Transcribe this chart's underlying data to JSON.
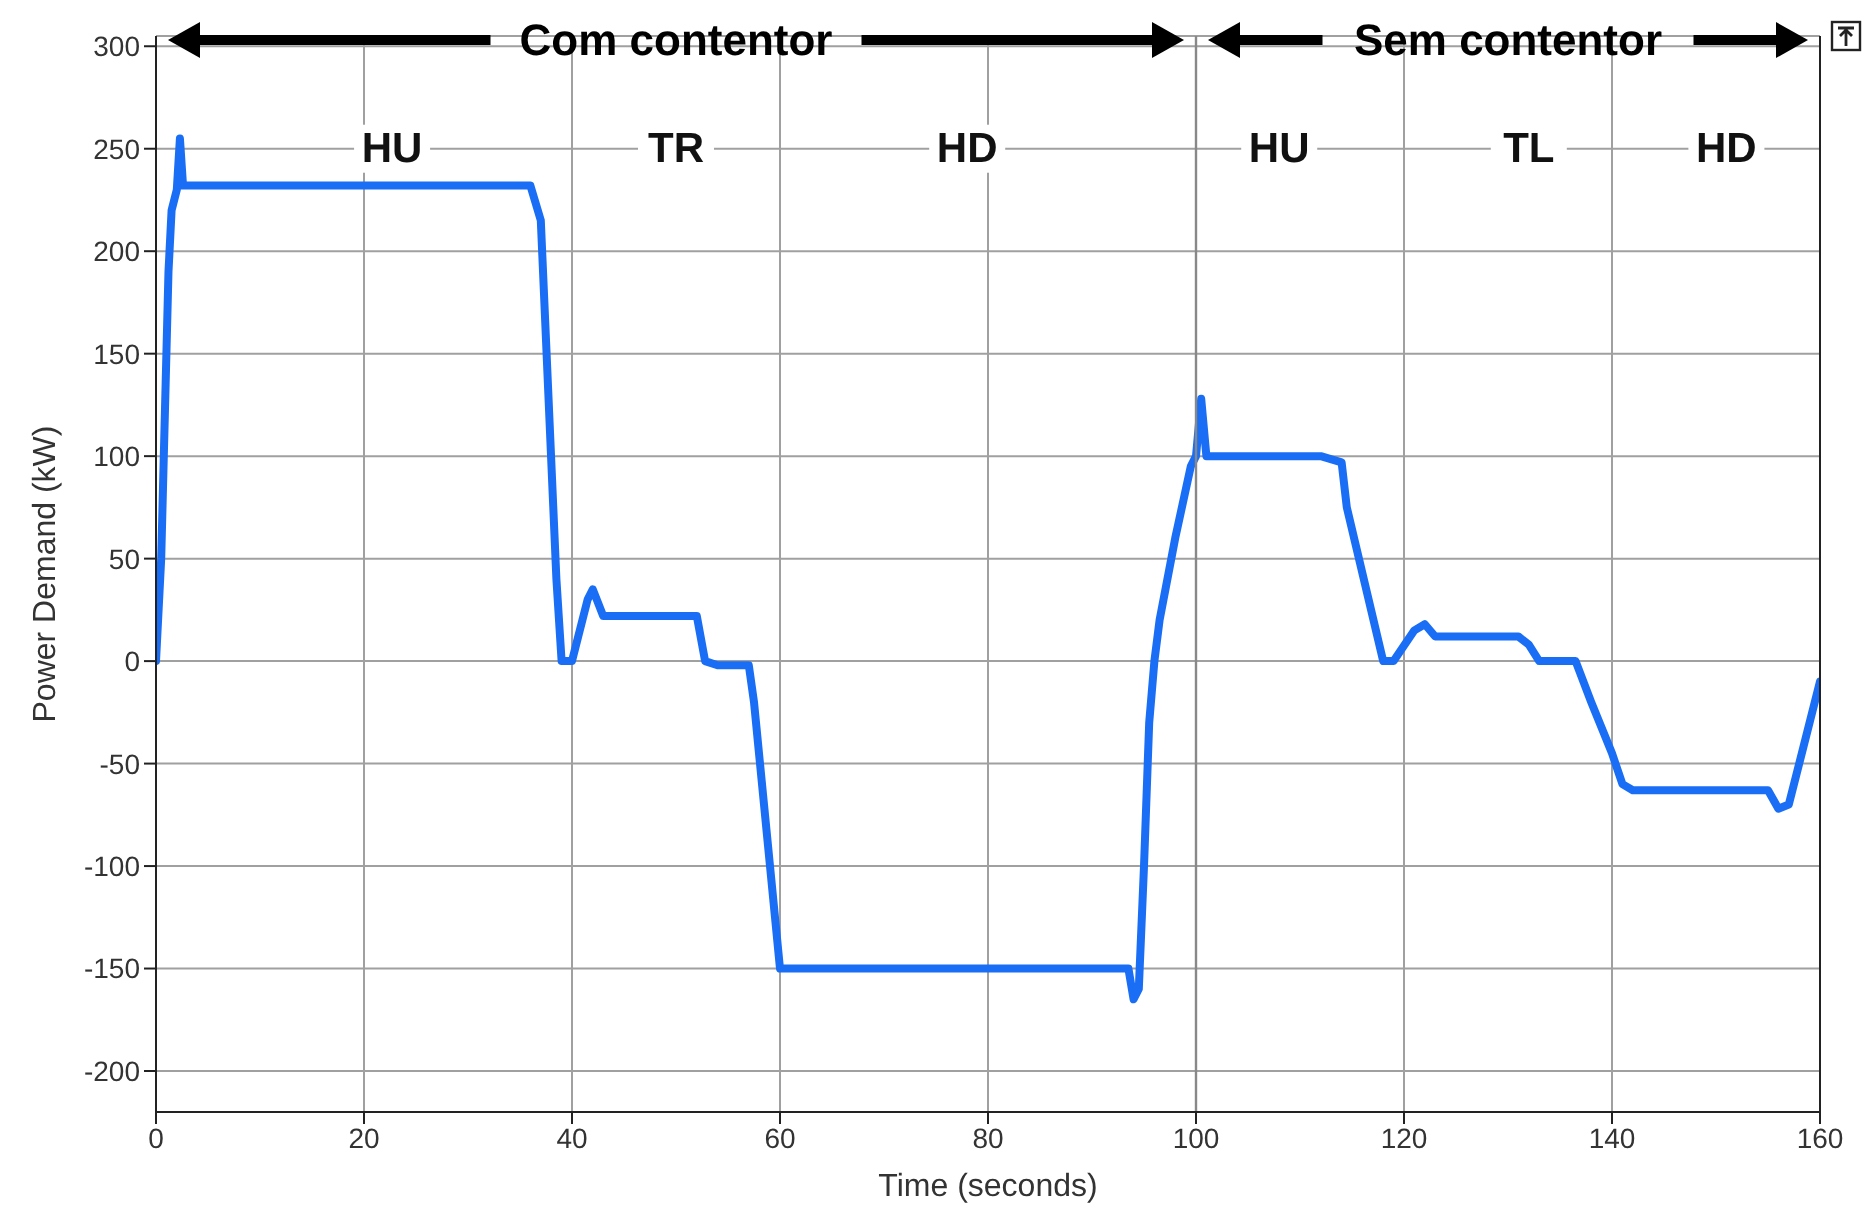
{
  "chart_data": {
    "type": "line",
    "xlabel": "Time (seconds)",
    "ylabel": "Power Demand (kW)",
    "xlim": [
      0,
      160
    ],
    "ylim": [
      -220,
      305
    ],
    "xticks": [
      0,
      20,
      40,
      60,
      80,
      100,
      120,
      140,
      160
    ],
    "yticks": [
      -200,
      -150,
      -100,
      -50,
      0,
      50,
      100,
      150,
      200,
      250,
      300
    ],
    "grid": true,
    "marker": "none",
    "line_style": "solid",
    "series": [
      {
        "color": "#1a6ef5",
        "x": [
          0,
          0.5,
          1.2,
          1.5,
          2,
          2.3,
          2.6,
          36,
          37,
          38.5,
          39,
          40,
          41.5,
          42,
          43,
          52,
          52.8,
          54,
          57,
          57.5,
          60,
          93.5,
          94,
          94.5,
          95,
          95.5,
          96,
          96.5,
          98,
          99.5,
          100,
          100.5,
          101,
          112,
          114,
          114.5,
          118,
          119,
          121,
          122,
          123,
          131,
          132,
          133,
          136.5,
          138,
          140,
          141,
          142,
          155,
          156,
          157,
          160
        ],
        "values": [
          0,
          50,
          190,
          220,
          230,
          255,
          232,
          232,
          215,
          40,
          0,
          0,
          30,
          35,
          22,
          22,
          0,
          -2,
          -2,
          -20,
          -150,
          -150,
          -165,
          -160,
          -100,
          -30,
          0,
          20,
          60,
          95,
          100,
          128,
          100,
          100,
          97,
          75,
          0,
          0,
          15,
          18,
          12,
          12,
          8,
          0,
          0,
          -20,
          -45,
          -60,
          -63,
          -63,
          -72,
          -70,
          -10
        ]
      }
    ],
    "ref_lines": [
      {
        "axis": "x",
        "value": 100
      }
    ],
    "annotations": [
      "Com contentor",
      "Sem contentor",
      {
        "text": "HU",
        "x": 22.7,
        "y": 250
      },
      {
        "text": "TR",
        "x": 50,
        "y": 250
      },
      {
        "text": "HD",
        "x": 78,
        "y": 250
      },
      {
        "text": "HU",
        "x": 108,
        "y": 250
      },
      {
        "text": "TL",
        "x": 132,
        "y": 250
      },
      {
        "text": "HD",
        "x": 151,
        "y": 250
      }
    ]
  }
}
